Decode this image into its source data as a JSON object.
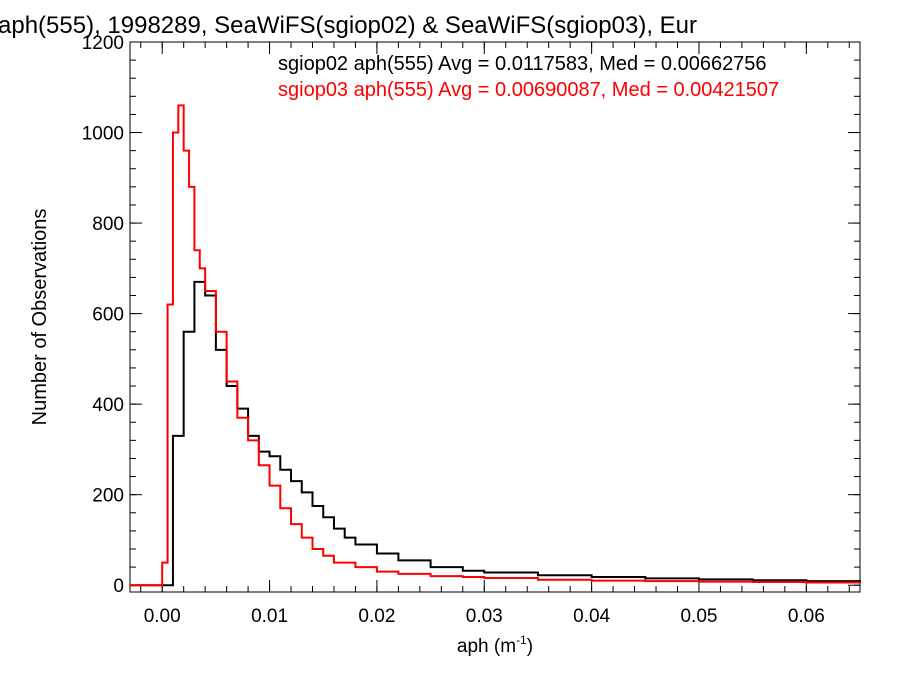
{
  "chart_data": {
    "type": "line",
    "title": "aph(555), 1998289, SeaWiFS(sgiop02) & SeaWiFS(sgiop03), Eur",
    "xlabel": "aph (m",
    "xlabel_sup": "-1",
    "xlabel_close": ")",
    "ylabel": "Number of Observations",
    "xlim": [
      -0.003,
      0.065
    ],
    "ylim": [
      -15,
      1200
    ],
    "x_ticks": [
      0.0,
      0.01,
      0.02,
      0.03,
      0.04,
      0.05,
      0.06
    ],
    "x_tick_labels": [
      "0.00",
      "0.01",
      "0.02",
      "0.03",
      "0.04",
      "0.05",
      "0.06"
    ],
    "y_ticks": [
      0,
      200,
      400,
      600,
      800,
      1000,
      1200
    ],
    "y_tick_labels": [
      "0",
      "200",
      "400",
      "600",
      "800",
      "1000",
      "1200"
    ],
    "grid": false,
    "legend_position": "top-right",
    "series": [
      {
        "name": "sgiop02",
        "color": "#000000",
        "annotation": "sgiop02 aph(555) Avg = 0.0117583, Med = 0.00662756",
        "x": [
          0.0,
          0.001,
          0.002,
          0.003,
          0.004,
          0.005,
          0.006,
          0.007,
          0.008,
          0.009,
          0.01,
          0.011,
          0.012,
          0.013,
          0.014,
          0.015,
          0.016,
          0.017,
          0.018,
          0.02,
          0.022,
          0.025,
          0.028,
          0.03,
          0.035,
          0.04,
          0.045,
          0.05,
          0.055,
          0.06,
          0.065
        ],
        "values": [
          0,
          330,
          560,
          670,
          640,
          520,
          440,
          390,
          330,
          295,
          285,
          255,
          230,
          205,
          175,
          150,
          125,
          105,
          90,
          70,
          55,
          40,
          32,
          28,
          22,
          18,
          15,
          13,
          11,
          9,
          8
        ]
      },
      {
        "name": "sgiop03",
        "color": "#ff0000",
        "annotation": "sgiop03 aph(555) Avg = 0.00690087, Med = 0.00421507",
        "x": [
          0.0,
          0.0005,
          0.001,
          0.0015,
          0.002,
          0.0025,
          0.003,
          0.0035,
          0.004,
          0.005,
          0.006,
          0.007,
          0.008,
          0.009,
          0.01,
          0.011,
          0.012,
          0.013,
          0.014,
          0.015,
          0.016,
          0.018,
          0.02,
          0.022,
          0.025,
          0.028,
          0.03,
          0.035,
          0.04,
          0.045,
          0.05,
          0.055,
          0.06,
          0.065
        ],
        "values": [
          50,
          620,
          1000,
          1060,
          960,
          880,
          740,
          700,
          650,
          560,
          450,
          370,
          320,
          265,
          220,
          170,
          135,
          105,
          80,
          65,
          50,
          40,
          30,
          25,
          20,
          18,
          16,
          12,
          10,
          9,
          8,
          7,
          6,
          5
        ]
      }
    ]
  }
}
